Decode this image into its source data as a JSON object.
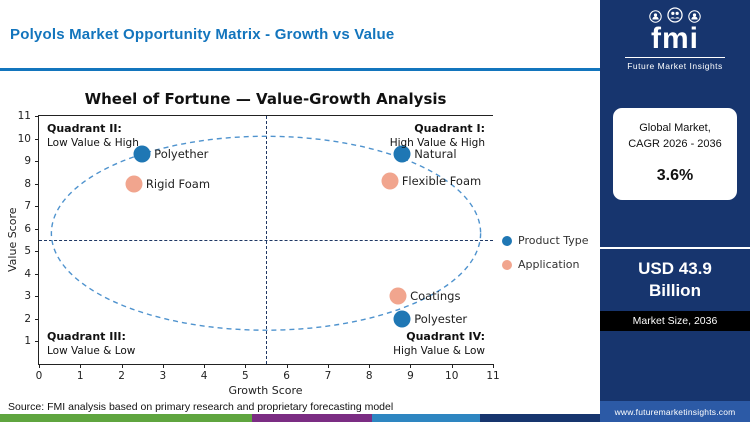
{
  "header": {
    "title": "Polyols Market Opportunity Matrix - Growth vs Value"
  },
  "logo": {
    "text": "fmi",
    "subtitle": "Future Market Insights"
  },
  "sidebar": {
    "cagr_card": {
      "line1": "Global Market,",
      "line2": "CAGR 2026 - 2036",
      "value": "3.6%"
    },
    "market_size": {
      "value": "USD 43.9 Billion",
      "label": "Market Size, 2036"
    },
    "website": "www.futuremarketinsights.com"
  },
  "footer": {
    "source": "Source: FMI analysis based on primary research and proprietary forecasting model",
    "stripe": [
      {
        "color": "#5fa53f",
        "width": "42%"
      },
      {
        "color": "#7b2d83",
        "width": "20%"
      },
      {
        "color": "#2e86c1",
        "width": "18%"
      },
      {
        "color": "#17356e",
        "width": "20%"
      }
    ]
  },
  "colors": {
    "accent_blue": "#1375bd",
    "navy": "#17356e",
    "product_type": "#1f77b4",
    "application": "#f1a58e"
  },
  "chart_data": {
    "type": "scatter",
    "title": "Wheel of Fortune — Value-Growth Analysis",
    "xlabel": "Growth Score",
    "ylabel": "Value Score",
    "xlim": [
      0,
      11
    ],
    "ylim": [
      0,
      11
    ],
    "x_ticks": [
      0,
      1,
      2,
      3,
      4,
      5,
      6,
      7,
      8,
      9,
      10,
      11
    ],
    "y_ticks": [
      1,
      2,
      3,
      4,
      5,
      6,
      7,
      8,
      9,
      10,
      11
    ],
    "grid": false,
    "legend_position": "right",
    "crosshair": {
      "x": 5.5,
      "y": 5.5
    },
    "ellipse": {
      "cx": 5.5,
      "cy": 5.8,
      "rx": 5.2,
      "ry": 4.3,
      "color": "#4f93ce"
    },
    "series": [
      {
        "name": "Product Type",
        "color": "#1f77b4",
        "points": [
          {
            "label": "Polyether",
            "x": 2.5,
            "y": 9.3
          },
          {
            "label": "Natural",
            "x": 8.8,
            "y": 9.3
          },
          {
            "label": "Polyester",
            "x": 8.8,
            "y": 2.0
          }
        ]
      },
      {
        "name": "Application",
        "color": "#f1a58e",
        "points": [
          {
            "label": "Rigid Foam",
            "x": 2.3,
            "y": 8.0
          },
          {
            "label": "Flexible Foam",
            "x": 8.5,
            "y": 8.1
          },
          {
            "label": "Coatings",
            "x": 8.7,
            "y": 3.0
          }
        ]
      }
    ],
    "quadrants": [
      {
        "name": "Quadrant II:",
        "desc": "Low Value & High",
        "pos": "top-left"
      },
      {
        "name": "Quadrant I:",
        "desc": "High Value & High",
        "pos": "top-right"
      },
      {
        "name": "Quadrant III:",
        "desc": "Low Value & Low",
        "pos": "bottom-left"
      },
      {
        "name": "Quadrant IV:",
        "desc": "High Value & Low",
        "pos": "bottom-right"
      }
    ],
    "legend": [
      "Product Type",
      "Application"
    ]
  }
}
